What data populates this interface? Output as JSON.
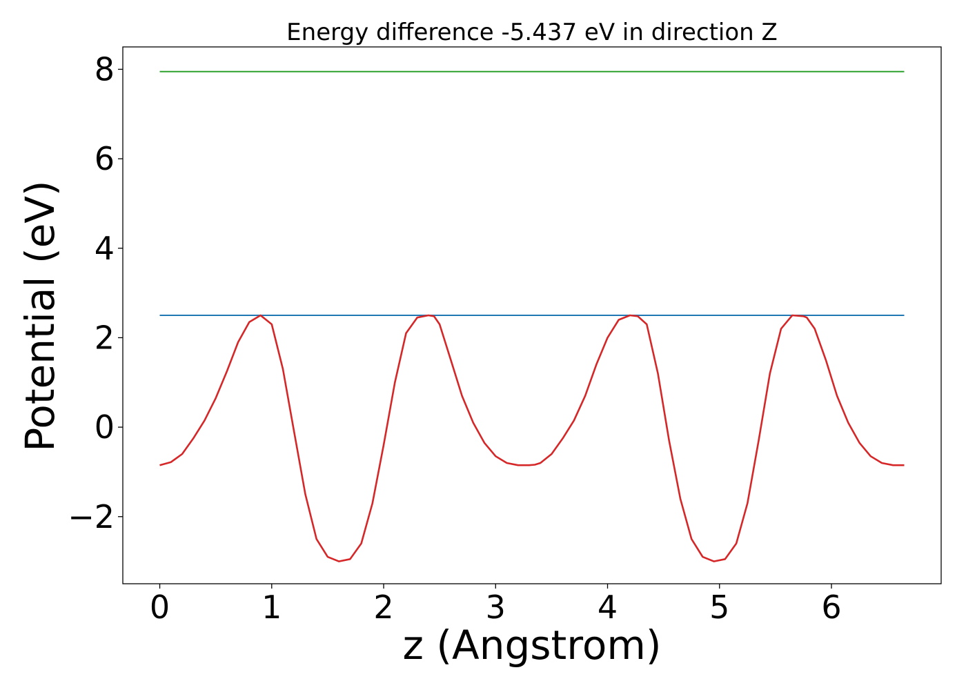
{
  "chart_data": {
    "type": "line",
    "title": "Energy difference -5.437 eV in direction Z",
    "xlabel": "z (Angstrom)",
    "ylabel": "Potential (eV)",
    "xlim": [
      -0.33,
      6.98
    ],
    "ylim": [
      -3.5,
      8.5
    ],
    "xticks": [
      0,
      1,
      2,
      3,
      4,
      5,
      6
    ],
    "xtick_labels": [
      "0",
      "1",
      "2",
      "3",
      "4",
      "5",
      "6"
    ],
    "yticks": [
      -2,
      0,
      2,
      4,
      6,
      8
    ],
    "ytick_labels": [
      "−2",
      "0",
      "2",
      "4",
      "6",
      "8"
    ],
    "grid": false,
    "series": [
      {
        "color": "#2ca02c",
        "x": [
          0,
          6.65
        ],
        "y": [
          7.95,
          7.95
        ]
      },
      {
        "color": "#1f77b4",
        "x": [
          0,
          6.65
        ],
        "y": [
          2.5,
          2.5
        ]
      },
      {
        "color": "#d62728",
        "x": [
          0.0,
          0.1,
          0.2,
          0.3,
          0.4,
          0.5,
          0.6,
          0.7,
          0.8,
          0.9,
          1.0,
          1.1,
          1.2,
          1.3,
          1.4,
          1.5,
          1.6,
          1.7,
          1.8,
          1.9,
          2.0,
          2.1,
          2.2,
          2.3,
          2.4,
          2.45,
          2.5,
          2.6,
          2.7,
          2.8,
          2.9,
          3.0,
          3.1,
          3.2,
          3.3,
          3.35,
          3.4,
          3.5,
          3.6,
          3.7,
          3.8,
          3.9,
          4.0,
          4.1,
          4.2,
          4.27,
          4.35,
          4.45,
          4.55,
          4.65,
          4.75,
          4.85,
          4.95,
          5.05,
          5.15,
          5.25,
          5.35,
          5.45,
          5.55,
          5.65,
          5.75,
          5.78,
          5.85,
          5.95,
          6.05,
          6.15,
          6.25,
          6.35,
          6.45,
          6.55,
          6.65
        ],
        "y": [
          -0.85,
          -0.78,
          -0.6,
          -0.25,
          0.15,
          0.65,
          1.25,
          1.9,
          2.35,
          2.5,
          2.3,
          1.3,
          -0.1,
          -1.5,
          -2.5,
          -2.9,
          -3.0,
          -2.95,
          -2.6,
          -1.7,
          -0.4,
          1.0,
          2.1,
          2.45,
          2.5,
          2.48,
          2.3,
          1.5,
          0.7,
          0.1,
          -0.35,
          -0.65,
          -0.8,
          -0.85,
          -0.85,
          -0.84,
          -0.8,
          -0.6,
          -0.25,
          0.15,
          0.7,
          1.4,
          2.0,
          2.4,
          2.5,
          2.48,
          2.3,
          1.2,
          -0.3,
          -1.6,
          -2.5,
          -2.9,
          -3.0,
          -2.95,
          -2.6,
          -1.7,
          -0.3,
          1.2,
          2.2,
          2.5,
          2.48,
          2.45,
          2.2,
          1.5,
          0.7,
          0.1,
          -0.35,
          -0.65,
          -0.8,
          -0.85,
          -0.85
        ]
      }
    ]
  }
}
